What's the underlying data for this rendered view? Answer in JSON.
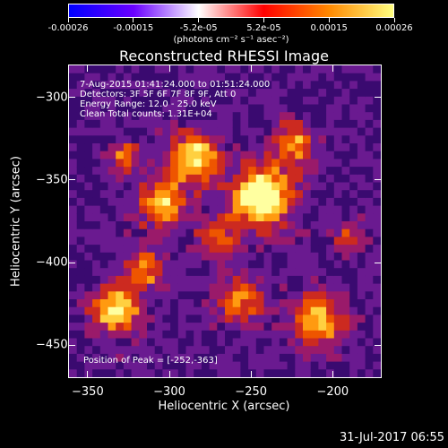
{
  "colorbar": {
    "tick_labels": [
      "-0.00026",
      "-0.00015",
      "-5.2e-05",
      "5.2e-05",
      "0.00015",
      "0.00026"
    ],
    "unit": "(photons cm⁻² s⁻¹ asec⁻²)",
    "colors": [
      "#0000ff",
      "#6a00ff",
      "#ffffff",
      "#ff0000",
      "#ff8800",
      "#ffff80"
    ]
  },
  "annotations": {
    "time": "7-Aug-2015 01:41:24.000 to 01:51:24.000",
    "detectors": "Detectors: 3F 5F 6F 7F 8F 9F, Att 0",
    "energy": "Energy Range: 12.0 - 25.0 keV",
    "clean": "Clean    Total counts: 1.31E+04",
    "peak": "Position of Peak = [-252,-363]"
  },
  "footer": {
    "timestamp": "31-Jul-2017 06:55"
  },
  "chart_data": {
    "type": "heatmap",
    "title": "Reconstructed RHESSI Image",
    "xlabel": "Heliocentric X (arcsec)",
    "ylabel": "Heliocentric Y (arcsec)",
    "xlim": [
      -362,
      -170
    ],
    "ylim": [
      -470,
      -280
    ],
    "x_ticks": [
      -350,
      -300,
      -250,
      -200
    ],
    "y_ticks": [
      -300,
      -350,
      -400,
      -450
    ],
    "x_tick_labels": [
      "−350",
      "−300",
      "−250",
      "−200"
    ],
    "y_tick_labels": [
      "−300",
      "−350",
      "−400",
      "−450"
    ],
    "value_range": [
      -0.00026,
      0.00026
    ],
    "peak_position": [
      -252,
      -363
    ]
  }
}
